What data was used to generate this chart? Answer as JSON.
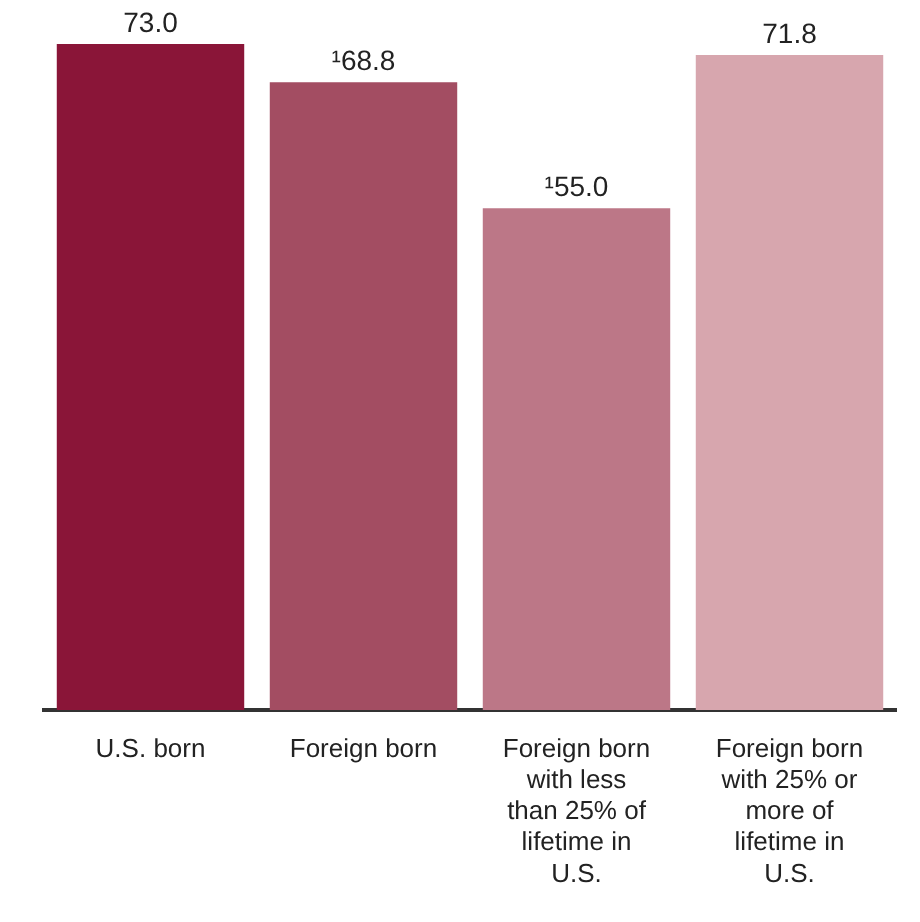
{
  "chart_data": {
    "type": "bar",
    "categories": [
      "U.S. born",
      "Foreign born",
      "Foreign born with less than 25% of lifetime in U.S.",
      "Foreign born with 25% or more of lifetime in U.S."
    ],
    "values": [
      73.0,
      68.8,
      55.0,
      71.8
    ],
    "colors": [
      "#8a1538",
      "#a34d62",
      "#bc7787",
      "#d7a6ae"
    ],
    "value_labels": [
      "73.0",
      "¹68.8",
      "¹55.0",
      "71.8"
    ],
    "grid": false,
    "legend": false
  }
}
